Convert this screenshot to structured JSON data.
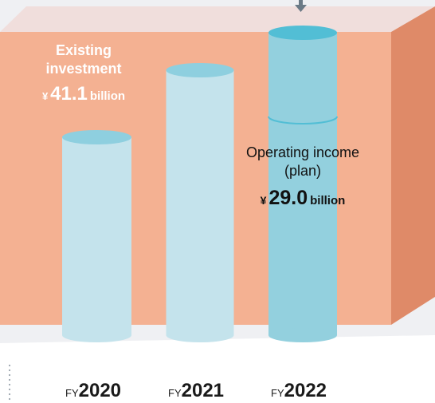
{
  "chart_data": {
    "type": "bar",
    "categories": [
      "2020",
      "2021",
      "2022"
    ],
    "category_prefix": "FY",
    "series": [
      {
        "values": [
          null,
          null,
          29.0
        ]
      }
    ],
    "annotations": [
      {
        "label_line1": "Existing",
        "label_line2": "investment",
        "currency": "¥",
        "value": "41.1",
        "unit": "billion"
      },
      {
        "label_line1": "Operating income",
        "label_line2": "(plan)",
        "currency": "¥",
        "value": "29.0",
        "unit": "billion"
      }
    ]
  },
  "colors": {
    "slab_front": "#f4b192",
    "slab_top": "#f0dedc",
    "slab_side": "#df8a68",
    "cylinder_light": "#c4e3ec",
    "cylinder_light_top": "#8ecfdf",
    "cylinder_accent": "#93d0de",
    "cylinder_accent_top": "#52bed5",
    "arrow": "#6b7a86",
    "background_band": "#eff0f3"
  }
}
